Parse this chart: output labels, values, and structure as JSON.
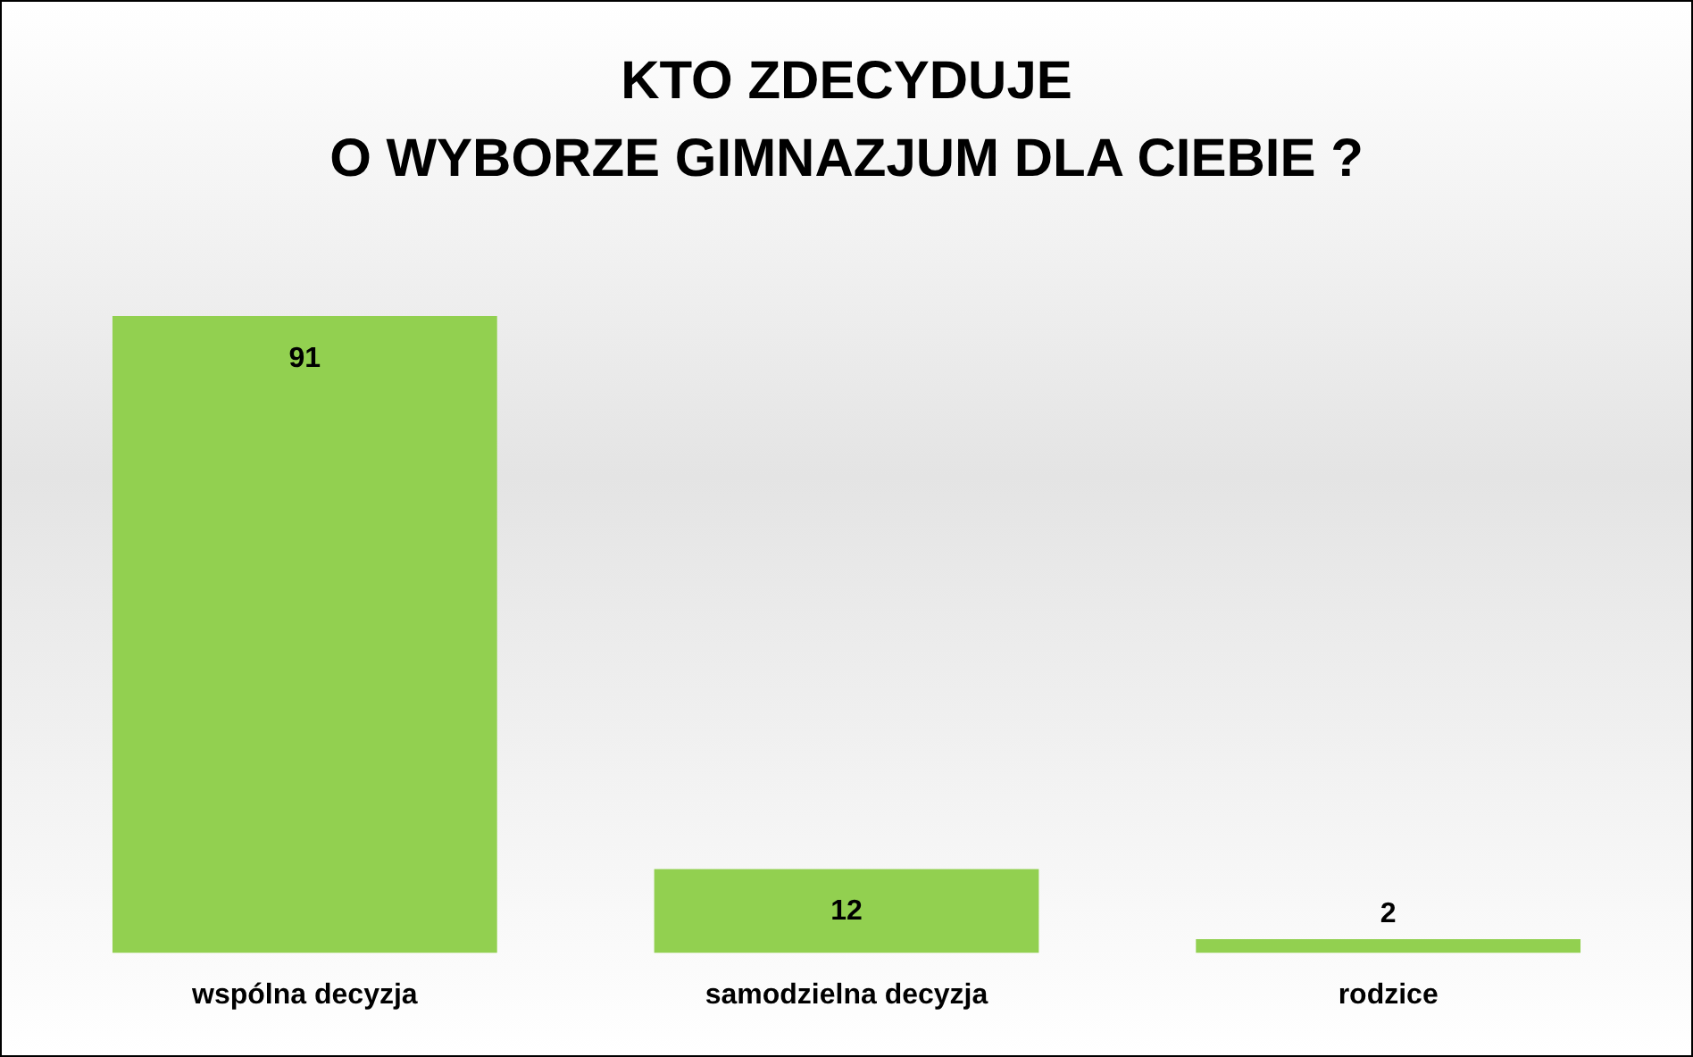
{
  "chart_data": {
    "type": "bar",
    "title": "KTO ZDECYDUJE\nO WYBORZE GIMNAZJUM DLA CIEBIE ?",
    "categories": [
      "wspólna decyzja",
      "samodzielna decyzja",
      "rodzice"
    ],
    "values": [
      91,
      12,
      2
    ],
    "color": "#92d050",
    "data_labels": true,
    "grid": false,
    "legend": false
  }
}
